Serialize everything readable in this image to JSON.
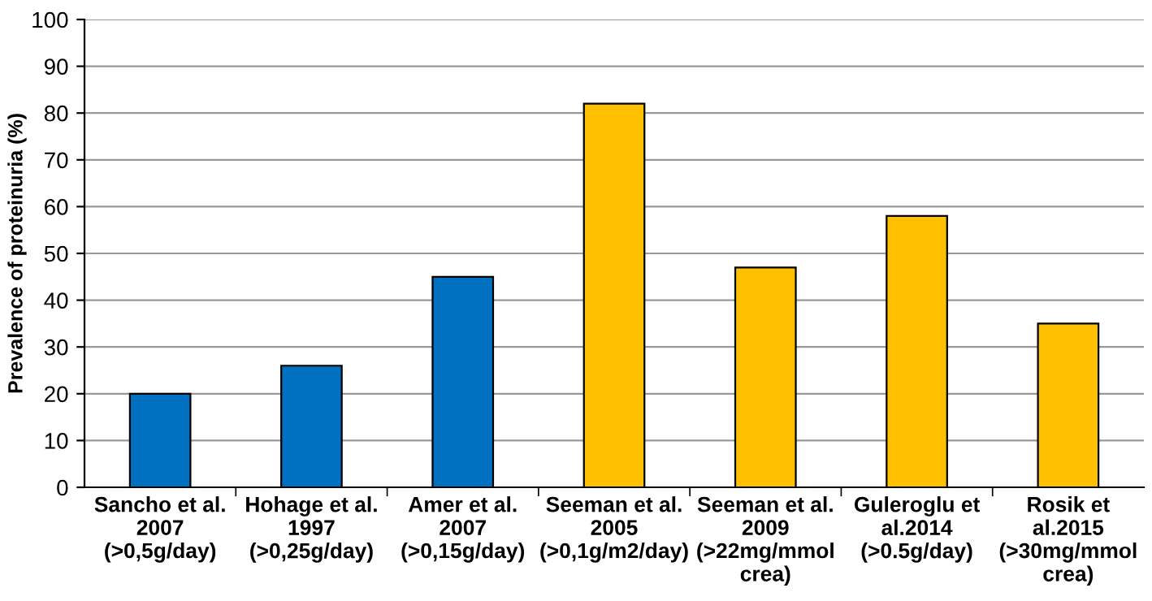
{
  "chart_data": {
    "type": "bar",
    "ylabel": "Prevalence of proteinuria (%)",
    "categories": [
      "Sancho et al.\n2007\n(>0,5g/day)",
      "Hohage et al.\n1997\n(>0,25g/day)",
      "Amer et al.\n2007\n(>0,15g/day)",
      "Seeman et al.\n2005\n(>0,1g/m2/day)",
      "Seeman et al.\n2009\n(>22mg/mmol\ncrea)",
      "Guleroglu et\nal.2014\n(>0.5g/day)",
      "Rosik et\nal.2015\n(>30mg/mmol\ncrea)"
    ],
    "values": [
      20,
      26,
      45,
      82,
      47,
      58,
      35
    ],
    "colors": [
      "#0070c0",
      "#0070c0",
      "#0070c0",
      "#ffc000",
      "#ffc000",
      "#ffc000",
      "#ffc000"
    ],
    "ylim": [
      0,
      100
    ],
    "yticks": [
      0,
      10,
      20,
      30,
      40,
      50,
      60,
      70,
      80,
      90,
      100
    ],
    "grid": "y",
    "legend": false
  }
}
